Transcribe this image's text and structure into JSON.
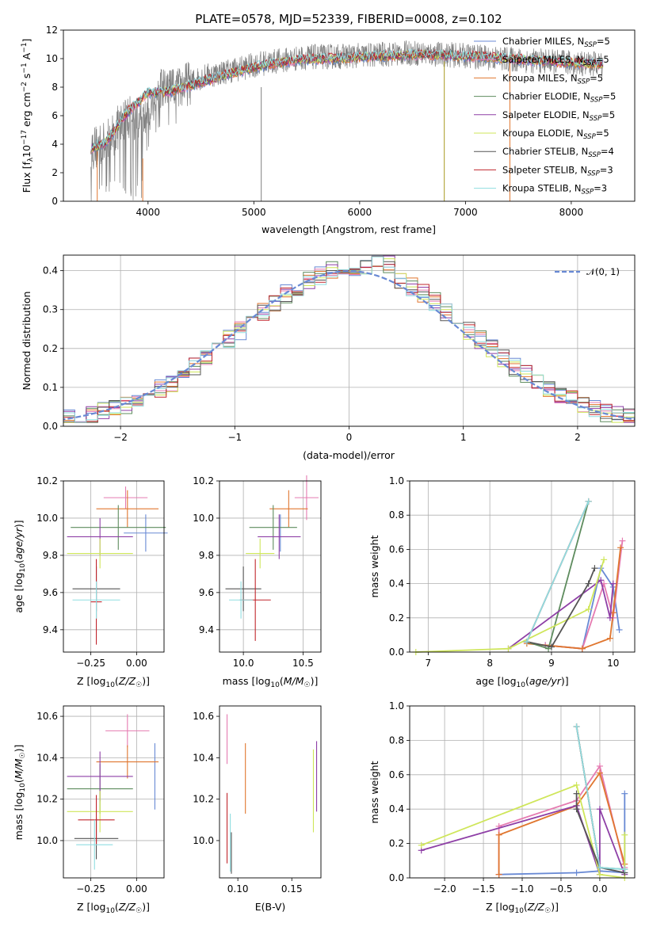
{
  "chart_data": [
    {
      "id": "spectrum",
      "type": "line",
      "title": "PLATE=0578, MJD=52339, FIBERID=0008, z=0.102",
      "xlabel": "wavelength [Angstrom, rest frame]",
      "ylabel": "Flux [f_λ 10^-17 erg cm^-2 s^-1 A^-1]",
      "xlim": [
        3200,
        8600
      ],
      "ylim": [
        0,
        12
      ],
      "xticks": [
        4000,
        5000,
        6000,
        7000,
        8000
      ],
      "yticks": [
        0,
        2,
        4,
        6,
        8,
        10,
        12
      ],
      "grid": false,
      "legend_position": "right",
      "data_color": "#7f7f7f",
      "data_x_range": [
        3460,
        8300
      ],
      "data_continuum": {
        "x": [
          3460,
          3600,
          3800,
          3950,
          4100,
          4300,
          4500,
          4800,
          5100,
          5500,
          6000,
          6500,
          7000,
          7500,
          8000,
          8300
        ],
        "y": [
          3.7,
          4.0,
          6.0,
          5.5,
          7.7,
          8.0,
          8.7,
          9.2,
          9.7,
          10.1,
          10.2,
          10.4,
          10.2,
          9.9,
          9.7,
          9.6
        ]
      },
      "series": [
        {
          "name": "Chabrier MILES, N_SSP=5",
          "label_main": "Chabrier MILES, N",
          "label_sub": "SSP",
          "label_tail": "=5",
          "color": "#6889d4"
        },
        {
          "name": "Salpeter MILES, N_SSP=5",
          "label_main": "Salpeter MILES, N",
          "label_sub": "SSP",
          "label_tail": "=5",
          "color": "#e57bb1"
        },
        {
          "name": "Kroupa MILES, N_SSP=5",
          "label_main": "Kroupa MILES, N",
          "label_sub": "SSP",
          "label_tail": "=5",
          "color": "#e0762f"
        },
        {
          "name": "Chabrier ELODIE, N_SSP=5",
          "label_main": "Chabrier ELODIE, N",
          "label_sub": "SSP",
          "label_tail": "=5",
          "color": "#5e8c5e"
        },
        {
          "name": "Salpeter ELODIE, N_SSP=5",
          "label_main": "Salpeter ELODIE, N",
          "label_sub": "SSP",
          "label_tail": "=5",
          "color": "#8e3fa6"
        },
        {
          "name": "Kroupa ELODIE, N_SSP=5",
          "label_main": "Kroupa ELODIE, N",
          "label_sub": "SSP",
          "label_tail": "=5",
          "color": "#cfe65a"
        },
        {
          "name": "Chabrier STELIB, N_SSP=4",
          "label_main": "Chabrier STELIB, N",
          "label_sub": "SSP",
          "label_tail": "=4",
          "color": "#555555"
        },
        {
          "name": "Salpeter STELIB, N_SSP=3",
          "label_main": "Salpeter STELIB, N",
          "label_sub": "SSP",
          "label_tail": "=3",
          "color": "#c0262d"
        },
        {
          "name": "Kroupa STELIB, N_SSP=3",
          "label_main": "Kroupa STELIB, N",
          "label_sub": "SSP",
          "label_tail": "=3",
          "color": "#8fdde0"
        }
      ],
      "model_continuum": {
        "x": [
          3460,
          3600,
          3800,
          4000,
          4200,
          4400,
          4700,
          5000,
          5400,
          6000,
          6600,
          7200,
          7800,
          8300
        ],
        "y": [
          3.7,
          4.1,
          6.2,
          7.6,
          7.7,
          8.1,
          8.8,
          9.4,
          9.9,
          10.1,
          10.3,
          10.1,
          9.8,
          9.6
        ]
      },
      "vertical_spikes": [
        {
          "x": 3520,
          "y_low": 0,
          "y_high": 3.5,
          "color": "#e0762f"
        },
        {
          "x": 3950,
          "y_low": 0,
          "y_high": 3.0,
          "color": "#e0762f"
        },
        {
          "x": 5070,
          "y_low": 0,
          "y_high": 8.0,
          "color": "#7f7f7f"
        },
        {
          "x": 6800,
          "y_low": 0,
          "y_high": 9.8,
          "color": "#a89a20"
        },
        {
          "x": 7420,
          "y_low": 0,
          "y_high": 10.0,
          "color": "#e0762f"
        }
      ]
    },
    {
      "id": "residuals",
      "type": "histogram",
      "xlabel": "(data-model)/error",
      "ylabel": "Normed distribution",
      "xlim": [
        -2.5,
        2.5
      ],
      "ylim": [
        0,
        0.44
      ],
      "xticks": [
        -2,
        -1,
        0,
        1,
        2
      ],
      "yticks": [
        0.0,
        0.1,
        0.2,
        0.3,
        0.4
      ],
      "grid": true,
      "legend_position": "top-right",
      "legend_label": "𝒩(0, 1)",
      "gaussian_color": "#6889d4",
      "bin_width": 0.1
    },
    {
      "id": "age_vs_Z",
      "type": "scatter",
      "xlabel": "Z [log10(Z/Z☉)]",
      "ylabel": "age  [log10(age/yr)]",
      "xlim": [
        -0.4,
        0.15
      ],
      "ylim": [
        9.28,
        10.2
      ],
      "xticks": [
        -0.25,
        0.0
      ],
      "yticks": [
        9.4,
        9.6,
        9.8,
        10.0,
        10.2
      ],
      "grid": true,
      "points": [
        {
          "x": 0.05,
          "y": 9.92,
          "xerr": 0.12,
          "yerr": 0.1,
          "color": "#6889d4"
        },
        {
          "x": -0.06,
          "y": 10.11,
          "xerr": 0.12,
          "yerr": 0.06,
          "color": "#e57bb1"
        },
        {
          "x": -0.05,
          "y": 10.05,
          "xerr": 0.17,
          "yerr": 0.1,
          "color": "#e0762f"
        },
        {
          "x": -0.1,
          "y": 9.95,
          "xerr": 0.26,
          "yerr": 0.12,
          "color": "#5e8c5e"
        },
        {
          "x": -0.2,
          "y": 9.9,
          "xerr": 0.18,
          "yerr": 0.1,
          "color": "#8e3fa6"
        },
        {
          "x": -0.2,
          "y": 9.81,
          "xerr": 0.18,
          "yerr": 0.08,
          "color": "#cfe65a"
        },
        {
          "x": -0.22,
          "y": 9.62,
          "xerr": 0.13,
          "yerr": 0.12,
          "color": "#555555"
        },
        {
          "x": -0.22,
          "y": 9.55,
          "xerr": 0.03,
          "yerr": 0.23,
          "color": "#c0262d"
        },
        {
          "x": -0.22,
          "y": 9.56,
          "xerr": 0.13,
          "yerr": 0.1,
          "color": "#8fdde0"
        }
      ]
    },
    {
      "id": "age_vs_mass",
      "type": "scatter",
      "xlabel": "mass [log10(M/M☉)]",
      "ylabel": "",
      "xlim": [
        9.8,
        10.65
      ],
      "ylim": [
        9.28,
        10.2
      ],
      "xticks": [
        10.0,
        10.5
      ],
      "yticks": [
        9.4,
        9.6,
        9.8,
        10.0,
        10.2
      ],
      "grid": true,
      "points": [
        {
          "x": 10.31,
          "y": 9.92,
          "xerr": 0.0,
          "yerr": 0.1,
          "color": "#6889d4"
        },
        {
          "x": 10.53,
          "y": 10.11,
          "xerr": 0.1,
          "yerr": 0.12,
          "color": "#e57bb1"
        },
        {
          "x": 10.38,
          "y": 10.05,
          "xerr": 0.16,
          "yerr": 0.1,
          "color": "#e0762f"
        },
        {
          "x": 10.25,
          "y": 9.95,
          "xerr": 0.2,
          "yerr": 0.12,
          "color": "#5e8c5e"
        },
        {
          "x": 10.3,
          "y": 9.9,
          "xerr": 0.18,
          "yerr": 0.12,
          "color": "#8e3fa6"
        },
        {
          "x": 10.14,
          "y": 9.81,
          "xerr": 0.12,
          "yerr": 0.08,
          "color": "#cfe65a"
        },
        {
          "x": 10.0,
          "y": 9.62,
          "xerr": 0.15,
          "yerr": 0.12,
          "color": "#555555"
        },
        {
          "x": 10.1,
          "y": 9.56,
          "xerr": 0.13,
          "yerr": 0.22,
          "color": "#c0262d"
        },
        {
          "x": 9.98,
          "y": 9.56,
          "xerr": 0.1,
          "yerr": 0.1,
          "color": "#8fdde0"
        }
      ]
    },
    {
      "id": "weight_vs_age",
      "type": "line",
      "xlabel": "age  [log10(age/yr)]",
      "ylabel": "mass weight",
      "xlim": [
        6.7,
        10.35
      ],
      "ylim": [
        0,
        1.0
      ],
      "xticks": [
        7,
        8,
        9,
        10
      ],
      "yticks": [
        0.0,
        0.2,
        0.4,
        0.6,
        0.8,
        1.0
      ],
      "grid": true,
      "series": [
        {
          "color": "#6889d4",
          "x": [
            8.9,
            9.5,
            9.8,
            10.0,
            10.1
          ],
          "y": [
            0.04,
            0.02,
            0.49,
            0.38,
            0.13
          ]
        },
        {
          "color": "#e57bb1",
          "x": [
            8.9,
            9.5,
            9.85,
            10.0,
            10.15
          ],
          "y": [
            0.04,
            0.02,
            0.4,
            0.2,
            0.65
          ]
        },
        {
          "color": "#e0762f",
          "x": [
            8.6,
            9.5,
            9.95,
            10.0,
            10.12
          ],
          "y": [
            0.05,
            0.02,
            0.08,
            0.23,
            0.61
          ]
        },
        {
          "color": "#5e8c5e",
          "x": [
            8.6,
            8.95,
            9.6
          ],
          "y": [
            0.06,
            0.02,
            0.88
          ]
        },
        {
          "color": "#8e3fa6",
          "x": [
            8.3,
            9.8,
            9.95,
            10.0
          ],
          "y": [
            0.02,
            0.42,
            0.2,
            0.4
          ]
        },
        {
          "color": "#cfe65a",
          "x": [
            6.8,
            8.3,
            9.6,
            9.85
          ],
          "y": [
            0.0,
            0.02,
            0.25,
            0.54
          ]
        },
        {
          "color": "#555555",
          "x": [
            8.6,
            9.0,
            9.6,
            9.7
          ],
          "y": [
            0.06,
            0.03,
            0.4,
            0.49
          ]
        },
        {
          "color": "#c0262d",
          "x": [
            8.6,
            9.6
          ],
          "y": [
            0.06,
            0.88
          ]
        },
        {
          "color": "#8fdde0",
          "x": [
            8.6,
            9.6
          ],
          "y": [
            0.06,
            0.88
          ]
        }
      ]
    },
    {
      "id": "mass_vs_Z",
      "type": "scatter",
      "xlabel": "Z [log10(Z/Z☉)]",
      "ylabel": "mass [log10(M/M☉)]",
      "xlim": [
        -0.4,
        0.15
      ],
      "ylim": [
        9.82,
        10.65
      ],
      "xticks": [
        -0.25,
        0.0
      ],
      "yticks": [
        10.0,
        10.2,
        10.4,
        10.6
      ],
      "grid": true,
      "points": [
        {
          "x": 0.1,
          "y": 10.31,
          "xerr": 0.0,
          "yerr": 0.16,
          "color": "#6889d4"
        },
        {
          "x": -0.05,
          "y": 10.53,
          "xerr": 0.12,
          "yerr": 0.08,
          "color": "#e57bb1"
        },
        {
          "x": -0.05,
          "y": 10.38,
          "xerr": 0.17,
          "yerr": 0.08,
          "color": "#e0762f"
        },
        {
          "x": -0.2,
          "y": 10.25,
          "xerr": 0.18,
          "yerr": 0.12,
          "color": "#5e8c5e"
        },
        {
          "x": -0.2,
          "y": 10.31,
          "xerr": 0.18,
          "yerr": 0.12,
          "color": "#8e3fa6"
        },
        {
          "x": -0.2,
          "y": 10.14,
          "xerr": 0.18,
          "yerr": 0.1,
          "color": "#cfe65a"
        },
        {
          "x": -0.22,
          "y": 10.01,
          "xerr": 0.12,
          "yerr": 0.1,
          "color": "#555555"
        },
        {
          "x": -0.22,
          "y": 10.1,
          "xerr": 0.1,
          "yerr": 0.12,
          "color": "#c0262d"
        },
        {
          "x": -0.23,
          "y": 9.98,
          "xerr": 0.1,
          "yerr": 0.12,
          "color": "#8fdde0"
        }
      ]
    },
    {
      "id": "mass_vs_ebv",
      "type": "scatter",
      "xlabel": "E(B-V)",
      "ylabel": "",
      "xlim": [
        0.083,
        0.177
      ],
      "ylim": [
        9.82,
        10.65
      ],
      "xticks": [
        0.1,
        0.15
      ],
      "yticks": [
        10.0,
        10.2,
        10.4,
        10.6
      ],
      "grid": false,
      "points": [
        {
          "x": 0.173,
          "y": 10.31,
          "xerr": 0.0,
          "yerr": 0.17,
          "color": "#8e3fa6"
        },
        {
          "x": 0.09,
          "y": 10.49,
          "xerr": 0.0,
          "yerr": 0.12,
          "color": "#e57bb1"
        },
        {
          "x": 0.107,
          "y": 10.3,
          "xerr": 0.0,
          "yerr": 0.17,
          "color": "#e0762f"
        },
        {
          "x": 0.17,
          "y": 10.24,
          "xerr": 0.0,
          "yerr": 0.2,
          "color": "#cfe65a"
        },
        {
          "x": 0.09,
          "y": 10.06,
          "xerr": 0.0,
          "yerr": 0.17,
          "color": "#c0262d"
        },
        {
          "x": 0.093,
          "y": 9.99,
          "xerr": 0.0,
          "yerr": 0.14,
          "color": "#8fdde0"
        },
        {
          "x": 0.094,
          "y": 9.94,
          "xerr": 0.0,
          "yerr": 0.1,
          "color": "#555555"
        }
      ]
    },
    {
      "id": "weight_vs_Z",
      "type": "line",
      "xlabel": "Z [log10(Z/Z☉)]",
      "ylabel": "mass weight",
      "xlim": [
        -2.45,
        0.45
      ],
      "ylim": [
        0,
        1.0
      ],
      "xticks": [
        -2.0,
        -1.5,
        -1.0,
        -0.5,
        0.0
      ],
      "yticks": [
        0.0,
        0.2,
        0.4,
        0.6,
        0.8,
        1.0
      ],
      "grid": true,
      "series": [
        {
          "color": "#6889d4",
          "x": [
            -1.3,
            -0.3,
            0.0,
            0.32,
            0.32
          ],
          "y": [
            0.02,
            0.03,
            0.04,
            0.03,
            0.49
          ]
        },
        {
          "color": "#e57bb1",
          "x": [
            -1.3,
            -1.3,
            -0.3,
            0.0,
            0.32
          ],
          "y": [
            0.02,
            0.3,
            0.45,
            0.65,
            0.06
          ]
        },
        {
          "color": "#e0762f",
          "x": [
            -1.3,
            -1.3,
            -0.3,
            0.0,
            0.32
          ],
          "y": [
            0.02,
            0.25,
            0.42,
            0.61,
            0.08
          ]
        },
        {
          "color": "#5e8c5e",
          "x": [
            -0.3,
            0.0,
            0.32
          ],
          "y": [
            0.88,
            0.06,
            0.05
          ]
        },
        {
          "color": "#8e3fa6",
          "x": [
            -2.3,
            -0.3,
            0.0,
            0.0,
            0.32
          ],
          "y": [
            0.16,
            0.42,
            0.02,
            0.4,
            0.02
          ]
        },
        {
          "color": "#cfe65a",
          "x": [
            -2.3,
            -0.3,
            0.0,
            0.32,
            0.32
          ],
          "y": [
            0.19,
            0.54,
            0.02,
            0.0,
            0.25
          ]
        },
        {
          "color": "#555555",
          "x": [
            -0.3,
            -0.3,
            0.0,
            0.32
          ],
          "y": [
            0.49,
            0.4,
            0.06,
            0.03
          ]
        },
        {
          "color": "#c0262d",
          "x": [
            -0.3,
            0.0
          ],
          "y": [
            0.88,
            0.06
          ]
        },
        {
          "color": "#8fdde0",
          "x": [
            -0.3,
            0.0,
            0.32
          ],
          "y": [
            0.88,
            0.06,
            0.05
          ]
        }
      ]
    }
  ]
}
